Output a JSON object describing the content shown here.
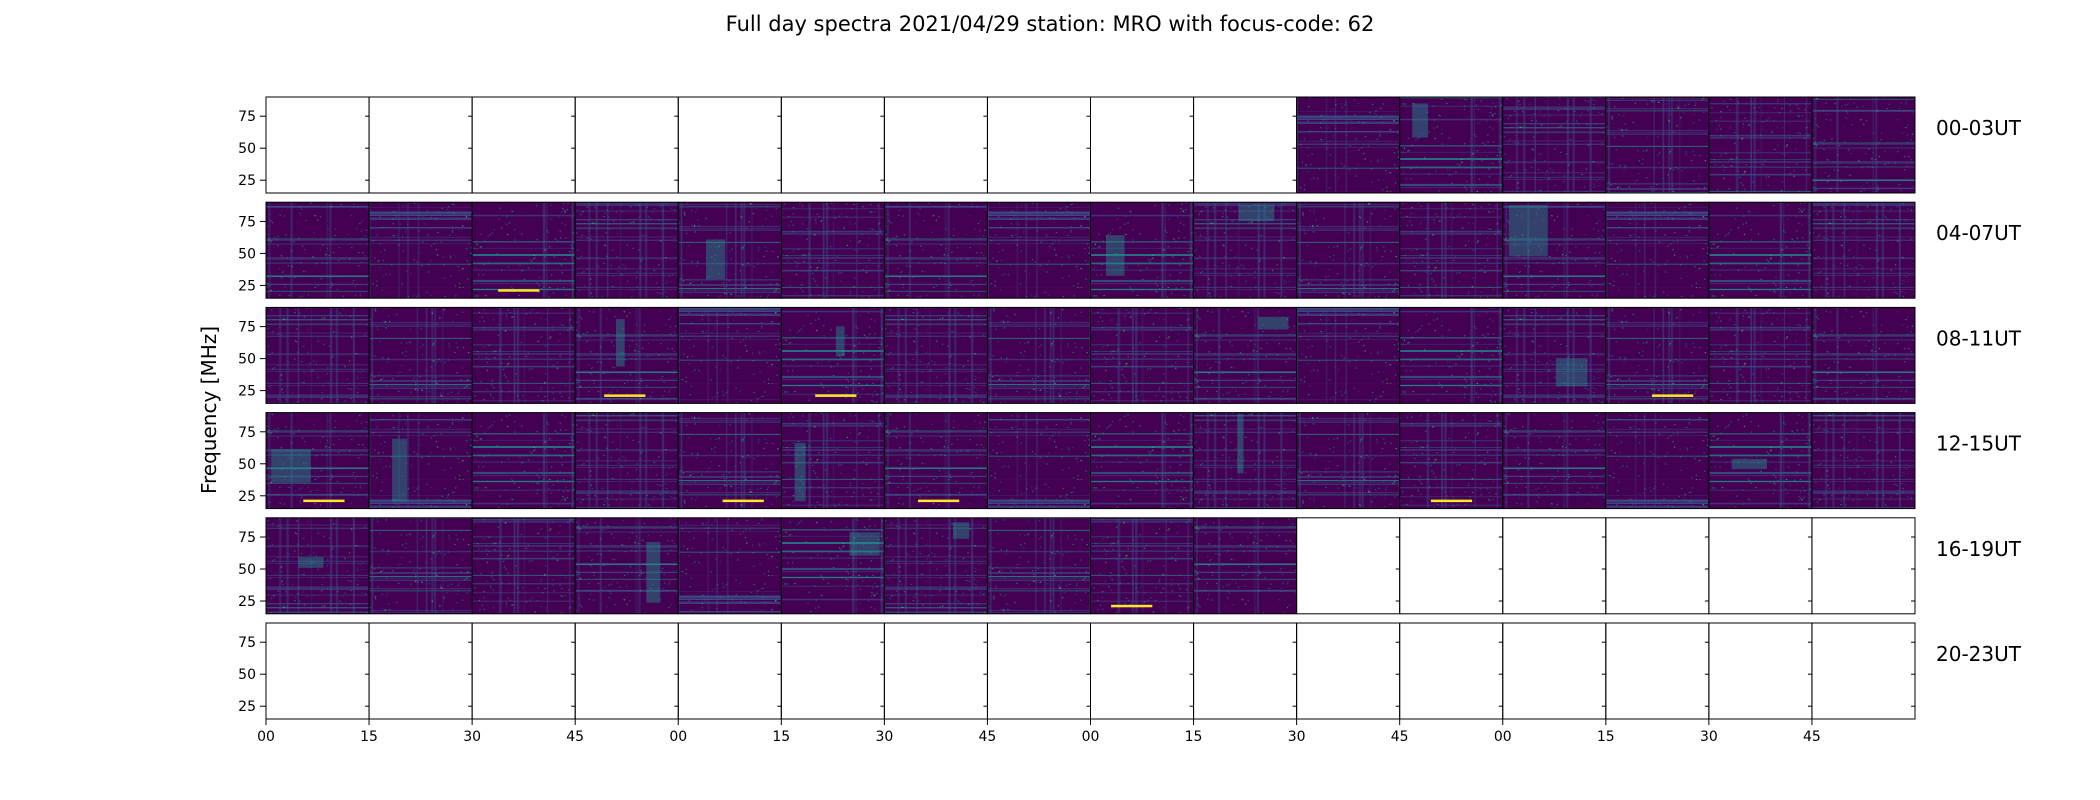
{
  "chart_data": {
    "type": "heatmap",
    "title": "Full day spectra 2021/04/29 station: MRO with focus-code: 62",
    "ylabel": "Frequency [MHz]",
    "xlabel": "",
    "y_ticks": [
      25,
      50,
      75
    ],
    "ylim": [
      15,
      90
    ],
    "x_tick_labels": [
      "00",
      "15",
      "30",
      "45",
      "00",
      "15",
      "30",
      "45",
      "00",
      "15",
      "30",
      "45",
      "00",
      "15",
      "30",
      "45"
    ],
    "colormap": [
      "#440154",
      "#3b528b",
      "#21918c",
      "#5ec962",
      "#fde725"
    ],
    "rows": [
      {
        "label": "00-03UT",
        "panels_with_data": [
          11,
          12,
          13,
          14,
          15,
          16
        ]
      },
      {
        "label": "04-07UT",
        "panels_with_data": [
          1,
          2,
          3,
          4,
          5,
          6,
          7,
          8,
          9,
          10,
          11,
          12,
          13,
          14,
          15,
          16
        ]
      },
      {
        "label": "08-11UT",
        "panels_with_data": [
          1,
          2,
          3,
          4,
          5,
          6,
          7,
          8,
          9,
          10,
          11,
          12,
          13,
          14,
          15,
          16
        ]
      },
      {
        "label": "12-15UT",
        "panels_with_data": [
          1,
          2,
          3,
          4,
          5,
          6,
          7,
          8,
          9,
          10,
          11,
          12,
          13,
          14,
          15,
          16
        ]
      },
      {
        "label": "16-19UT",
        "panels_with_data": [
          1,
          2,
          3,
          4,
          5,
          6,
          7,
          8,
          9,
          10
        ]
      },
      {
        "label": "20-23UT",
        "panels_with_data": []
      }
    ]
  }
}
